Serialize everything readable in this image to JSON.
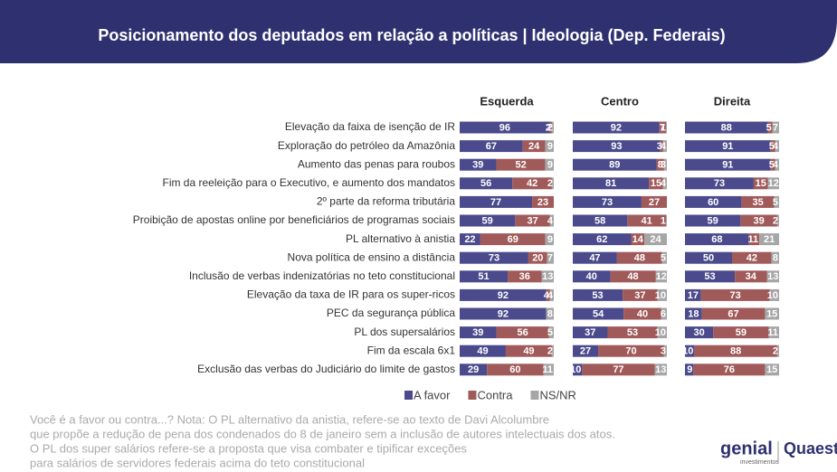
{
  "chart_data": {
    "type": "stacked-bar",
    "title": "Posicionamento dos deputados em relação a políticas | Ideologia (Dep. Federais)",
    "categories": [
      "Elevação da faixa de isenção de IR",
      "Exploração do petróleo da Amazônia",
      "Aumento das penas para roubos",
      "Fim da reeleição para o Executivo, e aumento dos mandatos",
      "2º parte da reforma tributária",
      "Proibição de apostas online por beneficiários de programas sociais",
      "PL alternativo à anistia",
      "Nova política de ensino a distância",
      "Inclusão de verbas indenizatórias no teto constitucional",
      "Elevação da taxa de IR para os super-ricos",
      "PEC da segurança pública",
      "PL dos supersalários",
      "Fim da escala 6x1",
      "Exclusão das verbas do Judiciário do limite de gastos"
    ],
    "xlim": [
      0,
      100
    ],
    "panels": [
      {
        "title": "Esquerda",
        "series": [
          {
            "name": "A favor",
            "color": "#4b4a8c",
            "values": [
              96,
              67,
              39,
              56,
              77,
              59,
              22,
              73,
              51,
              92,
              92,
              39,
              49,
              29
            ]
          },
          {
            "name": "Contra",
            "color": "#a05a5a",
            "values": [
              2,
              24,
              52,
              42,
              23,
              37,
              69,
              20,
              36,
              4,
              0,
              56,
              49,
              60
            ]
          },
          {
            "name": "NS/NR",
            "color": "#a6a6a6",
            "values": [
              2,
              9,
              9,
              2,
              0,
              4,
              9,
              7,
              13,
              4,
              8,
              5,
              2,
              11
            ]
          }
        ]
      },
      {
        "title": "Centro",
        "series": [
          {
            "name": "A favor",
            "color": "#4b4a8c",
            "values": [
              92,
              93,
              89,
              81,
              73,
              58,
              62,
              47,
              40,
              53,
              54,
              37,
              27,
              10
            ]
          },
          {
            "name": "Contra",
            "color": "#a05a5a",
            "values": [
              7,
              3,
              8,
              15,
              27,
              41,
              14,
              48,
              48,
              37,
              40,
              53,
              70,
              77
            ]
          },
          {
            "name": "NS/NR",
            "color": "#a6a6a6",
            "values": [
              1,
              4,
              3,
              4,
              0,
              1,
              24,
              5,
              12,
              10,
              6,
              10,
              3,
              13
            ]
          }
        ]
      },
      {
        "title": "Direita",
        "series": [
          {
            "name": "A favor",
            "color": "#4b4a8c",
            "values": [
              88,
              91,
              91,
              73,
              60,
              59,
              68,
              50,
              53,
              17,
              18,
              30,
              10,
              9
            ]
          },
          {
            "name": "Contra",
            "color": "#a05a5a",
            "values": [
              5,
              5,
              5,
              15,
              35,
              39,
              11,
              42,
              34,
              73,
              67,
              59,
              88,
              76
            ]
          },
          {
            "name": "NS/NR",
            "color": "#a6a6a6",
            "values": [
              7,
              4,
              4,
              12,
              5,
              2,
              21,
              8,
              13,
              10,
              15,
              11,
              2,
              15
            ]
          }
        ]
      }
    ],
    "notes": [
      "Você é a favor ou contra...? Nota: O PL alternativo da anistia, refere-se ao texto de Davi Alcolumbre",
      "que propõe a redução de pena dos condenados do 8 de janeiro sem a inclusão de autores intelectuais dos atos.",
      "O PL dos super salários refere-se a proposta que visa combater e tipificar exceções",
      "para salários de servidores federais acima do teto constitucional"
    ],
    "logos": [
      "genial",
      "investimentos",
      "Quaest"
    ]
  }
}
